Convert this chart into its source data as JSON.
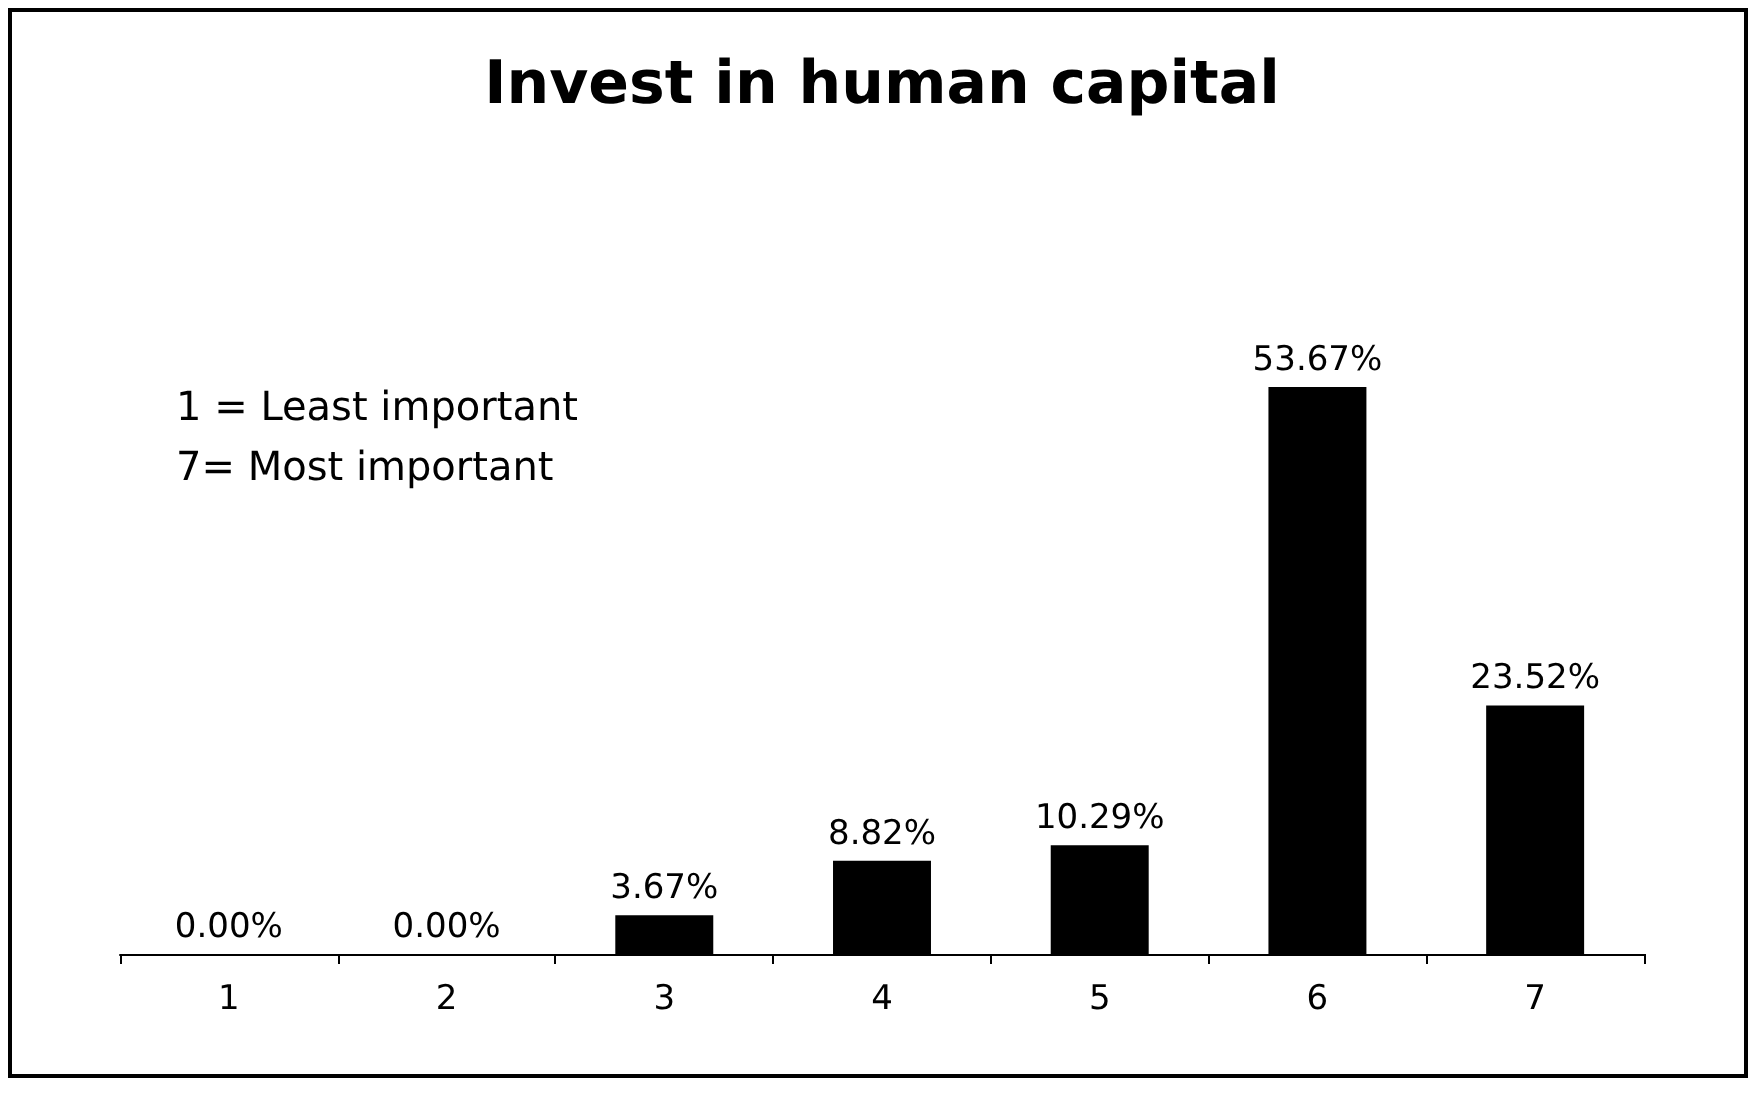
{
  "chart_data": {
    "type": "bar",
    "title": "Invest in human capital",
    "categories": [
      "1",
      "2",
      "3",
      "4",
      "5",
      "6",
      "7"
    ],
    "values": [
      0,
      0,
      3.67,
      8.82,
      10.29,
      53.67,
      23.52
    ],
    "value_labels": [
      "0.00%",
      "0.00%",
      "3.67%",
      "8.82%",
      "10.29%",
      "53.67%",
      "23.52%"
    ],
    "color": "#000000",
    "annotations": [
      "1 = Least important",
      "7= Most important"
    ]
  }
}
